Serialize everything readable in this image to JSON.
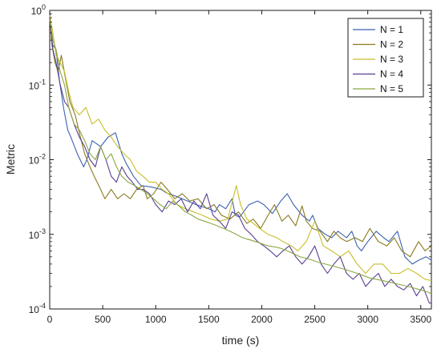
{
  "chart_data": {
    "type": "line",
    "xlabel": "time (s)",
    "ylabel": "Metric",
    "xlim": [
      0,
      3600
    ],
    "ylim": [
      0.0001,
      1
    ],
    "yscale": "log",
    "x_ticks": [
      0,
      500,
      1000,
      1500,
      2000,
      2500,
      3000,
      3500
    ],
    "x_tick_labels": [
      "0",
      "500",
      "1000",
      "1500",
      "2000",
      "2500",
      "3000",
      "3500"
    ],
    "y_ticks": [
      0.0001,
      0.001,
      0.01,
      0.1,
      1
    ],
    "y_tick_labels": [
      {
        "base": "10",
        "exp": "-4"
      },
      {
        "base": "10",
        "exp": "-3"
      },
      {
        "base": "10",
        "exp": "-2"
      },
      {
        "base": "10",
        "exp": "-1"
      },
      {
        "base": "10",
        "exp": "0"
      }
    ],
    "grid": false,
    "legend_position": "top-right",
    "series": [
      {
        "name": "N = 1",
        "color": "#3b62b0",
        "x": [
          0,
          25,
          60,
          90,
          130,
          170,
          200,
          260,
          320,
          350,
          400,
          480,
          550,
          620,
          680,
          720,
          790,
          860,
          960,
          1050,
          1100,
          1200,
          1300,
          1380,
          1500,
          1560,
          1600,
          1660,
          1720,
          1750,
          1790,
          1880,
          1960,
          2020,
          2100,
          2180,
          2240,
          2300,
          2380,
          2450,
          2480,
          2530,
          2600,
          2660,
          2720,
          2800,
          2850,
          2900,
          2940,
          3000,
          3080,
          3150,
          3200,
          3280,
          3350,
          3420,
          3480,
          3550,
          3600
        ],
        "y": [
          0.95,
          0.35,
          0.3,
          0.12,
          0.05,
          0.025,
          0.02,
          0.012,
          0.008,
          0.01,
          0.018,
          0.015,
          0.02,
          0.023,
          0.012,
          0.009,
          0.006,
          0.0045,
          0.0043,
          0.004,
          0.0036,
          0.0032,
          0.0028,
          0.0025,
          0.0022,
          0.002,
          0.0025,
          0.0022,
          0.003,
          0.0018,
          0.0017,
          0.0025,
          0.0028,
          0.0025,
          0.0019,
          0.0028,
          0.0035,
          0.0025,
          0.0018,
          0.0015,
          0.0018,
          0.0012,
          0.001,
          0.0009,
          0.0011,
          0.0009,
          0.0011,
          0.0007,
          0.0006,
          0.0008,
          0.0011,
          0.0009,
          0.0008,
          0.0011,
          0.0005,
          0.0004,
          0.00045,
          0.0005,
          0.00045
        ]
      },
      {
        "name": "N = 2",
        "color": "#8a7a1e",
        "x": [
          0,
          20,
          50,
          80,
          110,
          150,
          190,
          240,
          290,
          330,
          380,
          420,
          480,
          520,
          580,
          640,
          700,
          760,
          820,
          880,
          920,
          980,
          1050,
          1110,
          1180,
          1250,
          1320,
          1400,
          1480,
          1550,
          1620,
          1700,
          1780,
          1860,
          1920,
          1990,
          2060,
          2120,
          2190,
          2250,
          2320,
          2380,
          2420,
          2480,
          2550,
          2620,
          2680,
          2740,
          2800,
          2880,
          2950,
          3020,
          3100,
          3180,
          3250,
          3320,
          3400,
          3480,
          3540,
          3600
        ],
        "y": [
          0.9,
          0.35,
          0.2,
          0.15,
          0.25,
          0.12,
          0.06,
          0.04,
          0.02,
          0.012,
          0.008,
          0.006,
          0.004,
          0.003,
          0.004,
          0.003,
          0.0035,
          0.003,
          0.004,
          0.0045,
          0.003,
          0.0035,
          0.005,
          0.004,
          0.003,
          0.0035,
          0.0028,
          0.003,
          0.0022,
          0.0025,
          0.0018,
          0.0016,
          0.002,
          0.0014,
          0.0016,
          0.0012,
          0.0018,
          0.0025,
          0.0015,
          0.0018,
          0.0013,
          0.0024,
          0.0015,
          0.0012,
          0.0011,
          0.0008,
          0.0011,
          0.0009,
          0.0008,
          0.0009,
          0.0008,
          0.0012,
          0.0008,
          0.0007,
          0.0009,
          0.0006,
          0.0005,
          0.0008,
          0.0006,
          0.0007
        ]
      },
      {
        "name": "N = 3",
        "color": "#c8be2a",
        "x": [
          0,
          30,
          60,
          100,
          140,
          180,
          220,
          280,
          340,
          400,
          460,
          520,
          580,
          640,
          700,
          760,
          820,
          880,
          940,
          1000,
          1060,
          1120,
          1200,
          1280,
          1360,
          1440,
          1520,
          1600,
          1680,
          1760,
          1800,
          1860,
          1920,
          1980,
          2060,
          2140,
          2200,
          2280,
          2340,
          2420,
          2500,
          2580,
          2660,
          2740,
          2820,
          2900,
          2980,
          3060,
          3140,
          3220,
          3300,
          3380,
          3460,
          3540,
          3600
        ],
        "y": [
          0.85,
          0.5,
          0.25,
          0.2,
          0.15,
          0.08,
          0.05,
          0.04,
          0.05,
          0.03,
          0.035,
          0.025,
          0.02,
          0.015,
          0.012,
          0.01,
          0.007,
          0.006,
          0.005,
          0.005,
          0.004,
          0.0035,
          0.0025,
          0.0022,
          0.002,
          0.0018,
          0.0016,
          0.0015,
          0.0016,
          0.0045,
          0.0025,
          0.0016,
          0.0014,
          0.0012,
          0.001,
          0.0009,
          0.0008,
          0.0007,
          0.0006,
          0.0008,
          0.0015,
          0.0007,
          0.0006,
          0.0005,
          0.0006,
          0.0004,
          0.0003,
          0.0004,
          0.0004,
          0.0003,
          0.0003,
          0.00035,
          0.0003,
          0.00025,
          0.00024
        ]
      },
      {
        "name": "N = 4",
        "color": "#5a3e90",
        "x": [
          0,
          30,
          60,
          100,
          140,
          180,
          230,
          280,
          330,
          380,
          430,
          480,
          530,
          580,
          630,
          680,
          730,
          780,
          830,
          880,
          940,
          1000,
          1060,
          1120,
          1180,
          1240,
          1300,
          1360,
          1420,
          1480,
          1540,
          1600,
          1660,
          1720,
          1780,
          1840,
          1900,
          1960,
          2020,
          2080,
          2140,
          2200,
          2260,
          2320,
          2380,
          2440,
          2500,
          2560,
          2620,
          2680,
          2740,
          2800,
          2860,
          2920,
          2980,
          3040,
          3100,
          3160,
          3220,
          3280,
          3340,
          3400,
          3460,
          3520,
          3580,
          3600
        ],
        "y": [
          0.8,
          0.3,
          0.2,
          0.1,
          0.06,
          0.05,
          0.03,
          0.02,
          0.015,
          0.01,
          0.008,
          0.015,
          0.01,
          0.006,
          0.005,
          0.008,
          0.006,
          0.005,
          0.004,
          0.004,
          0.0035,
          0.0025,
          0.002,
          0.0028,
          0.0025,
          0.003,
          0.002,
          0.0028,
          0.0022,
          0.0035,
          0.0018,
          0.0015,
          0.0012,
          0.002,
          0.0018,
          0.0012,
          0.001,
          0.0008,
          0.0007,
          0.0006,
          0.0005,
          0.0006,
          0.0007,
          0.0005,
          0.0004,
          0.0005,
          0.0007,
          0.0004,
          0.0003,
          0.0004,
          0.0005,
          0.0003,
          0.00025,
          0.0003,
          0.0002,
          0.00025,
          0.0003,
          0.0002,
          0.00025,
          0.0002,
          0.00018,
          0.00022,
          0.00015,
          0.0002,
          0.00012,
          0.00012
        ]
      },
      {
        "name": "N = 5",
        "color": "#8aa842",
        "x": [
          0,
          30,
          60,
          100,
          140,
          180,
          230,
          280,
          330,
          380,
          430,
          480,
          530,
          580,
          630,
          680,
          740,
          800,
          860,
          920,
          980,
          1040,
          1100,
          1160,
          1220,
          1280,
          1340,
          1400,
          1460,
          1520,
          1580,
          1640,
          1700,
          1760,
          1820,
          1880,
          1940,
          2000,
          2060,
          2120,
          2180,
          2240,
          2300,
          2360,
          2420,
          2480,
          2540,
          2600,
          2660,
          2720,
          2780,
          2840,
          2900,
          2960,
          3020,
          3080,
          3140,
          3200,
          3260,
          3320,
          3380,
          3440,
          3500,
          3560,
          3600
        ],
        "y": [
          0.75,
          0.4,
          0.3,
          0.15,
          0.1,
          0.05,
          0.03,
          0.025,
          0.018,
          0.012,
          0.01,
          0.015,
          0.01,
          0.012,
          0.008,
          0.006,
          0.005,
          0.0045,
          0.004,
          0.0035,
          0.003,
          0.0025,
          0.0022,
          0.0028,
          0.0024,
          0.002,
          0.0018,
          0.0016,
          0.0015,
          0.0014,
          0.0013,
          0.0012,
          0.0011,
          0.001,
          0.0009,
          0.00085,
          0.0008,
          0.00075,
          0.0007,
          0.00068,
          0.00065,
          0.0006,
          0.00055,
          0.0005,
          0.00048,
          0.00045,
          0.00042,
          0.0004,
          0.00038,
          0.00036,
          0.00034,
          0.00032,
          0.0003,
          0.00028,
          0.00026,
          0.00025,
          0.00024,
          0.00023,
          0.00022,
          0.00021,
          0.0002,
          0.00019,
          0.00018,
          0.00017,
          0.00016
        ]
      }
    ]
  }
}
